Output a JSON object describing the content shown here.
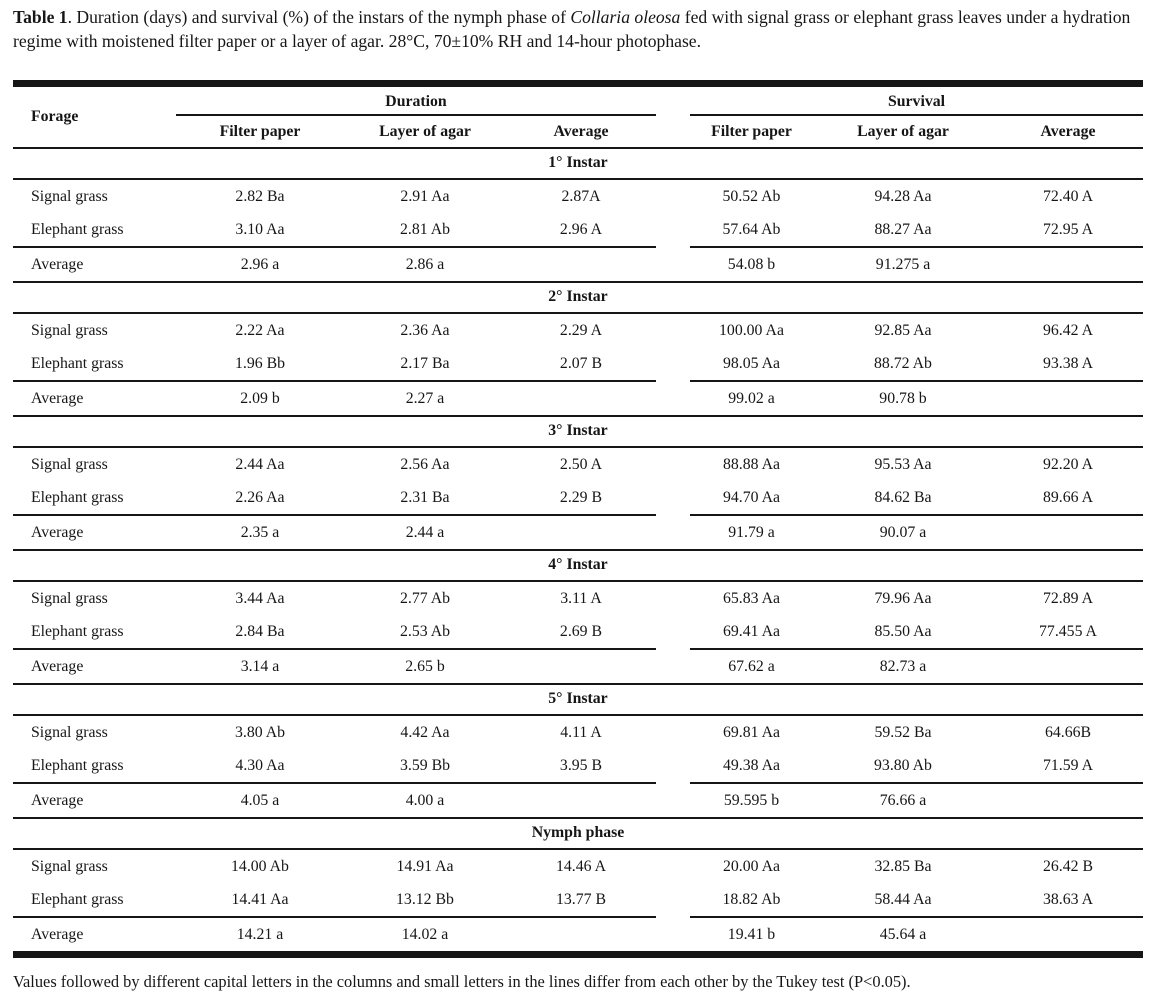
{
  "title": {
    "label_bold": "Table 1",
    "text_after_label": ". Duration (days) and survival (%) of the instars of the nymph phase of ",
    "species_italic": "Collaria oleosa",
    "text_rest": " fed with signal grass or elephant grass leaves under a hydration regime with moistened filter paper or a layer of agar. 28°C, 70±10% RH and 14-hour photophase."
  },
  "table": {
    "forage_header": "Forage",
    "groups": [
      {
        "label": "Duration",
        "subheaders": [
          "Filter paper",
          "Layer of agar",
          "Average"
        ]
      },
      {
        "label": "Survival",
        "subheaders": [
          "Filter paper",
          "Layer of agar",
          "Average"
        ]
      }
    ],
    "sections": [
      {
        "title": "1° Instar",
        "rows": [
          {
            "forage": "Signal grass",
            "duration": [
              "2.82 Ba",
              "2.91 Aa",
              "2.87A"
            ],
            "survival": [
              "50.52 Ab",
              "94.28 Aa",
              "72.40 A"
            ]
          },
          {
            "forage": "Elephant grass",
            "duration": [
              "3.10 Aa",
              "2.81 Ab",
              "2.96 A"
            ],
            "survival": [
              "57.64 Ab",
              "88.27 Aa",
              "72.95 A"
            ]
          },
          {
            "forage": "Average",
            "duration": [
              "2.96 a",
              "2.86 a",
              ""
            ],
            "survival": [
              "54.08 b",
              "91.275 a",
              ""
            ]
          }
        ]
      },
      {
        "title": "2° Instar",
        "rows": [
          {
            "forage": "Signal grass",
            "duration": [
              "2.22 Aa",
              "2.36 Aa",
              "2.29 A"
            ],
            "survival": [
              "100.00 Aa",
              "92.85 Aa",
              "96.42 A"
            ]
          },
          {
            "forage": "Elephant grass",
            "duration": [
              "1.96 Bb",
              "2.17 Ba",
              "2.07 B"
            ],
            "survival": [
              "98.05 Aa",
              "88.72 Ab",
              "93.38 A"
            ]
          },
          {
            "forage": "Average",
            "duration": [
              "2.09 b",
              "2.27 a",
              ""
            ],
            "survival": [
              "99.02 a",
              "90.78 b",
              ""
            ]
          }
        ]
      },
      {
        "title": "3° Instar",
        "rows": [
          {
            "forage": "Signal grass",
            "duration": [
              "2.44 Aa",
              "2.56 Aa",
              "2.50 A"
            ],
            "survival": [
              "88.88 Aa",
              "95.53 Aa",
              "92.20 A"
            ]
          },
          {
            "forage": "Elephant grass",
            "duration": [
              "2.26 Aa",
              "2.31 Ba",
              "2.29 B"
            ],
            "survival": [
              "94.70 Aa",
              "84.62 Ba",
              "89.66 A"
            ]
          },
          {
            "forage": "Average",
            "duration": [
              "2.35 a",
              "2.44 a",
              ""
            ],
            "survival": [
              "91.79 a",
              "90.07 a",
              ""
            ]
          }
        ]
      },
      {
        "title": "4° Instar",
        "rows": [
          {
            "forage": "Signal grass",
            "duration": [
              "3.44 Aa",
              "2.77 Ab",
              "3.11 A"
            ],
            "survival": [
              "65.83 Aa",
              "79.96 Aa",
              "72.89 A"
            ]
          },
          {
            "forage": "Elephant grass",
            "duration": [
              "2.84 Ba",
              "2.53 Ab",
              "2.69 B"
            ],
            "survival": [
              "69.41 Aa",
              "85.50 Aa",
              "77.455 A"
            ]
          },
          {
            "forage": "Average",
            "duration": [
              "3.14 a",
              "2.65 b",
              ""
            ],
            "survival": [
              "67.62 a",
              "82.73 a",
              ""
            ]
          }
        ]
      },
      {
        "title": "5° Instar",
        "rows": [
          {
            "forage": "Signal grass",
            "duration": [
              "3.80 Ab",
              "4.42 Aa",
              "4.11 A"
            ],
            "survival": [
              "69.81 Aa",
              "59.52 Ba",
              "64.66B"
            ]
          },
          {
            "forage": "Elephant grass",
            "duration": [
              "4.30 Aa",
              "3.59 Bb",
              "3.95 B"
            ],
            "survival": [
              "49.38 Aa",
              "93.80 Ab",
              "71.59 A"
            ]
          },
          {
            "forage": "Average",
            "duration": [
              "4.05 a",
              "4.00 a",
              ""
            ],
            "survival": [
              "59.595 b",
              "76.66 a",
              ""
            ]
          }
        ]
      },
      {
        "title": "Nymph phase",
        "rows": [
          {
            "forage": "Signal grass",
            "duration": [
              "14.00 Ab",
              "14.91 Aa",
              "14.46 A"
            ],
            "survival": [
              "20.00 Aa",
              "32.85 Ba",
              "26.42 B"
            ]
          },
          {
            "forage": "Elephant grass",
            "duration": [
              "14.41 Aa",
              "13.12 Bb",
              "13.77 B"
            ],
            "survival": [
              "18.82 Ab",
              "58.44 Aa",
              "38.63 A"
            ]
          },
          {
            "forage": "Average",
            "duration": [
              "14.21 a",
              "14.02 a",
              ""
            ],
            "survival": [
              "19.41 b",
              "45.64 a",
              ""
            ]
          }
        ]
      }
    ]
  },
  "footnote": "Values followed by different capital letters in the columns and small letters in the lines differ from each other by the Tukey test (P<0.05)."
}
